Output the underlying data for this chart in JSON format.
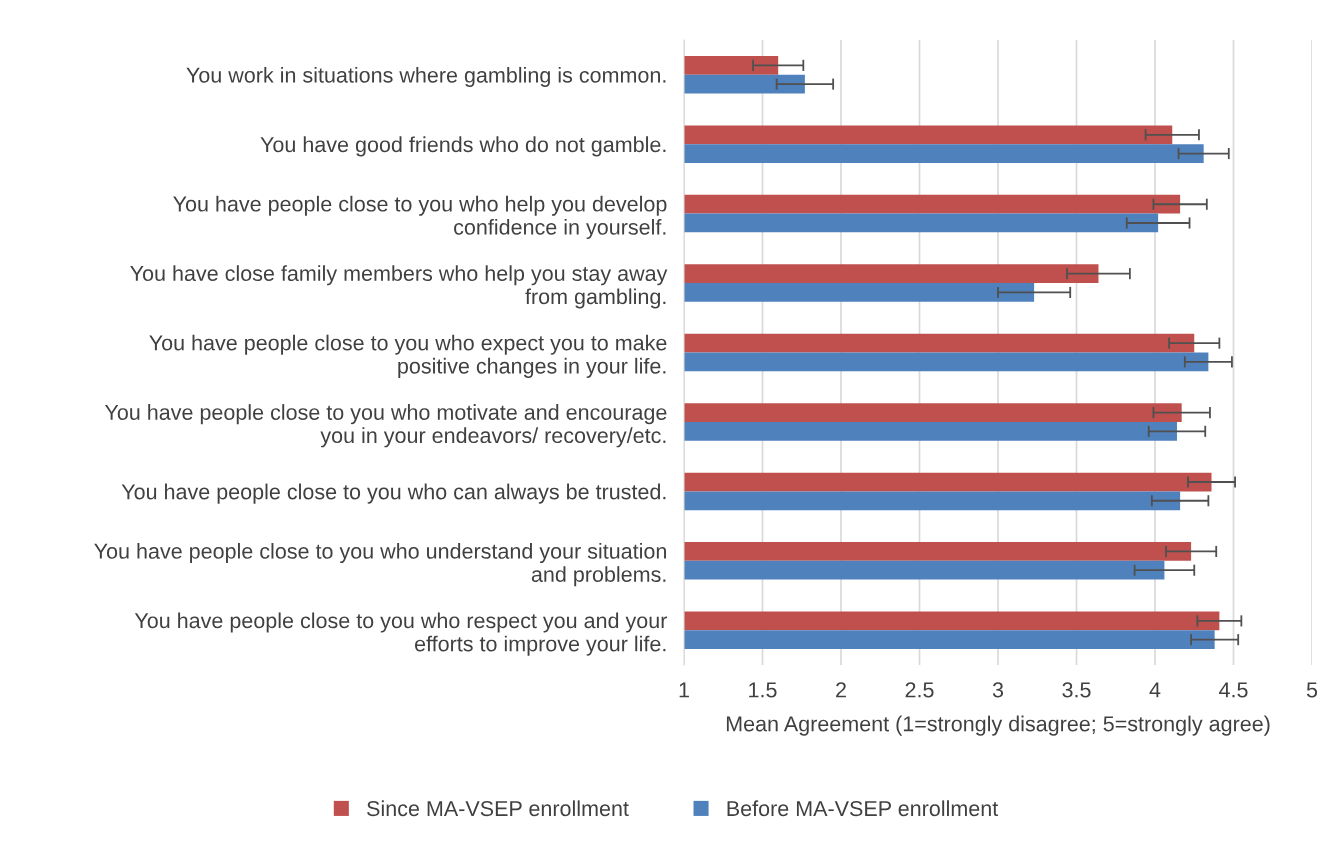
{
  "chart_data": {
    "type": "bar",
    "orientation": "horizontal",
    "xlabel": "Mean Agreement (1=strongly disagree; 5=strongly agree)",
    "categories": [
      "You work in situations where gambling is common.",
      "You have good friends who do not gamble.",
      "You have people close to you who help you develop\nconfidence in yourself.",
      "You have close family members who help you stay away\nfrom gambling.",
      "You have people close to you who expect you to make\npositive changes in your life.",
      "You have people close to you who motivate and encourage\nyou in your endeavors/ recovery/etc.",
      "You have people close to you who can always be trusted.",
      "You have people close to you who understand your situation\nand problems.",
      "You have people close to you who respect you and your\nefforts to improve your life."
    ],
    "series": [
      {
        "name": "Since MA-VSEP enrollment",
        "color": "#c0504d",
        "values": [
          1.6,
          4.11,
          4.16,
          3.64,
          4.25,
          4.17,
          4.36,
          4.23,
          4.41
        ],
        "errors": [
          0.16,
          0.17,
          0.17,
          0.2,
          0.16,
          0.18,
          0.15,
          0.16,
          0.14
        ]
      },
      {
        "name": "Before MA-VSEP enrollment",
        "color": "#4f81bd",
        "values": [
          1.77,
          4.31,
          4.02,
          3.23,
          4.34,
          4.14,
          4.16,
          4.06,
          4.38
        ],
        "errors": [
          0.18,
          0.16,
          0.2,
          0.23,
          0.15,
          0.18,
          0.18,
          0.19,
          0.15
        ]
      }
    ],
    "xlim": [
      1,
      5
    ],
    "xticks": [
      1,
      1.5,
      2,
      2.5,
      3,
      3.5,
      4,
      4.5,
      5
    ],
    "grid": "x",
    "legend": "bottom"
  }
}
